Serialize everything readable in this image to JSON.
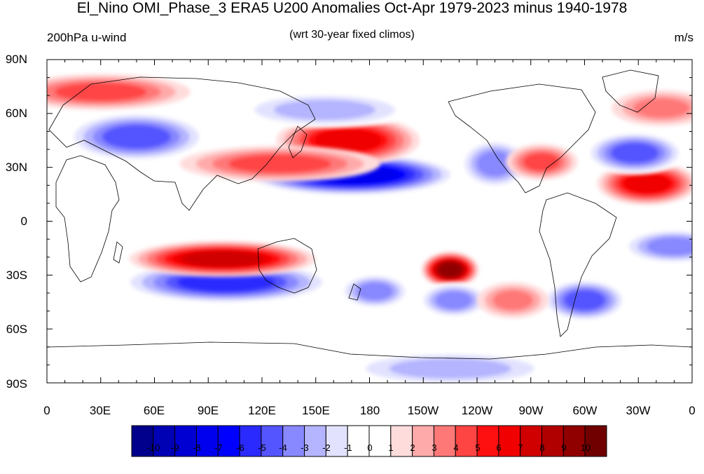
{
  "title": "El_Nino OMI_Phase_3 ERA5 U200 Anomalies Oct-Apr 1979-2023 minus 1940-1978",
  "left_label": "200hPa u-wind",
  "center_label": "(wrt 30-year fixed climos)",
  "right_label": "m/s",
  "lat_labels": [
    "90N",
    "60N",
    "30N",
    "0",
    "30S",
    "60S",
    "90S"
  ],
  "lon_labels": [
    "0",
    "30E",
    "60E",
    "90E",
    "120E",
    "150E",
    "180",
    "150W",
    "120W",
    "90W",
    "60W",
    "30W",
    "0"
  ],
  "colorbar": {
    "labels": [
      "-10",
      "-9",
      "-8",
      "-7",
      "-6",
      "-5",
      "-4",
      "-3",
      "-2",
      "-1",
      "0",
      "1",
      "2",
      "3",
      "4",
      "5",
      "6",
      "7",
      "8",
      "9",
      "10"
    ],
    "colors": [
      "#00008c",
      "#0000b4",
      "#0000d2",
      "#0000ee",
      "#0000ff",
      "#2a2aff",
      "#5555ff",
      "#8888ff",
      "#b4b4ff",
      "#e2e2ff",
      "#ffffff",
      "#ffffff",
      "#ffdcdc",
      "#ffaaaa",
      "#ff7878",
      "#ff4444",
      "#ff1010",
      "#f00000",
      "#d00000",
      "#b00000",
      "#900000",
      "#700000"
    ]
  },
  "map_data": {
    "anomalies": [
      {
        "lon": 170,
        "lat": 26,
        "value": -8,
        "rx": 30,
        "ry": 6
      },
      {
        "lon": 100,
        "lat": -34,
        "value": -6,
        "rx": 30,
        "ry": 6
      },
      {
        "lon": 50,
        "lat": 47,
        "value": -5,
        "rx": 20,
        "ry": 7
      },
      {
        "lon": 98,
        "lat": -21,
        "value": 7,
        "rx": 26,
        "ry": 5
      },
      {
        "lon": 168,
        "lat": 45,
        "value": 6,
        "rx": 20,
        "ry": 7
      },
      {
        "lon": 130,
        "lat": 32,
        "value": 4,
        "rx": 28,
        "ry": 5
      },
      {
        "lon": 225,
        "lat": -27,
        "value": 9,
        "rx": 8,
        "ry": 5
      },
      {
        "lon": 30,
        "lat": 72,
        "value": 4,
        "rx": 25,
        "ry": 5
      },
      {
        "lon": 335,
        "lat": 21,
        "value": 6,
        "rx": 14,
        "ry": 6
      },
      {
        "lon": 328,
        "lat": 38,
        "value": -5,
        "rx": 14,
        "ry": 6
      },
      {
        "lon": 300,
        "lat": -44,
        "value": -5,
        "rx": 12,
        "ry": 6
      },
      {
        "lon": 227,
        "lat": -44,
        "value": -4,
        "rx": 10,
        "ry": 5
      },
      {
        "lon": 183,
        "lat": -39,
        "value": -4,
        "rx": 10,
        "ry": 5
      },
      {
        "lon": 343,
        "lat": 63,
        "value": 3,
        "rx": 14,
        "ry": 5
      },
      {
        "lon": 260,
        "lat": -44,
        "value": 3,
        "rx": 10,
        "ry": 5
      },
      {
        "lon": 250,
        "lat": 32,
        "value": -4,
        "rx": 10,
        "ry": 7
      },
      {
        "lon": 276,
        "lat": 33,
        "value": 4,
        "rx": 10,
        "ry": 5
      },
      {
        "lon": 225,
        "lat": -82,
        "value": -3,
        "rx": 30,
        "ry": 5
      },
      {
        "lon": 350,
        "lat": -14,
        "value": -4,
        "rx": 15,
        "ry": 5
      },
      {
        "lon": 155,
        "lat": 62,
        "value": -3,
        "rx": 25,
        "ry": 5
      }
    ]
  }
}
